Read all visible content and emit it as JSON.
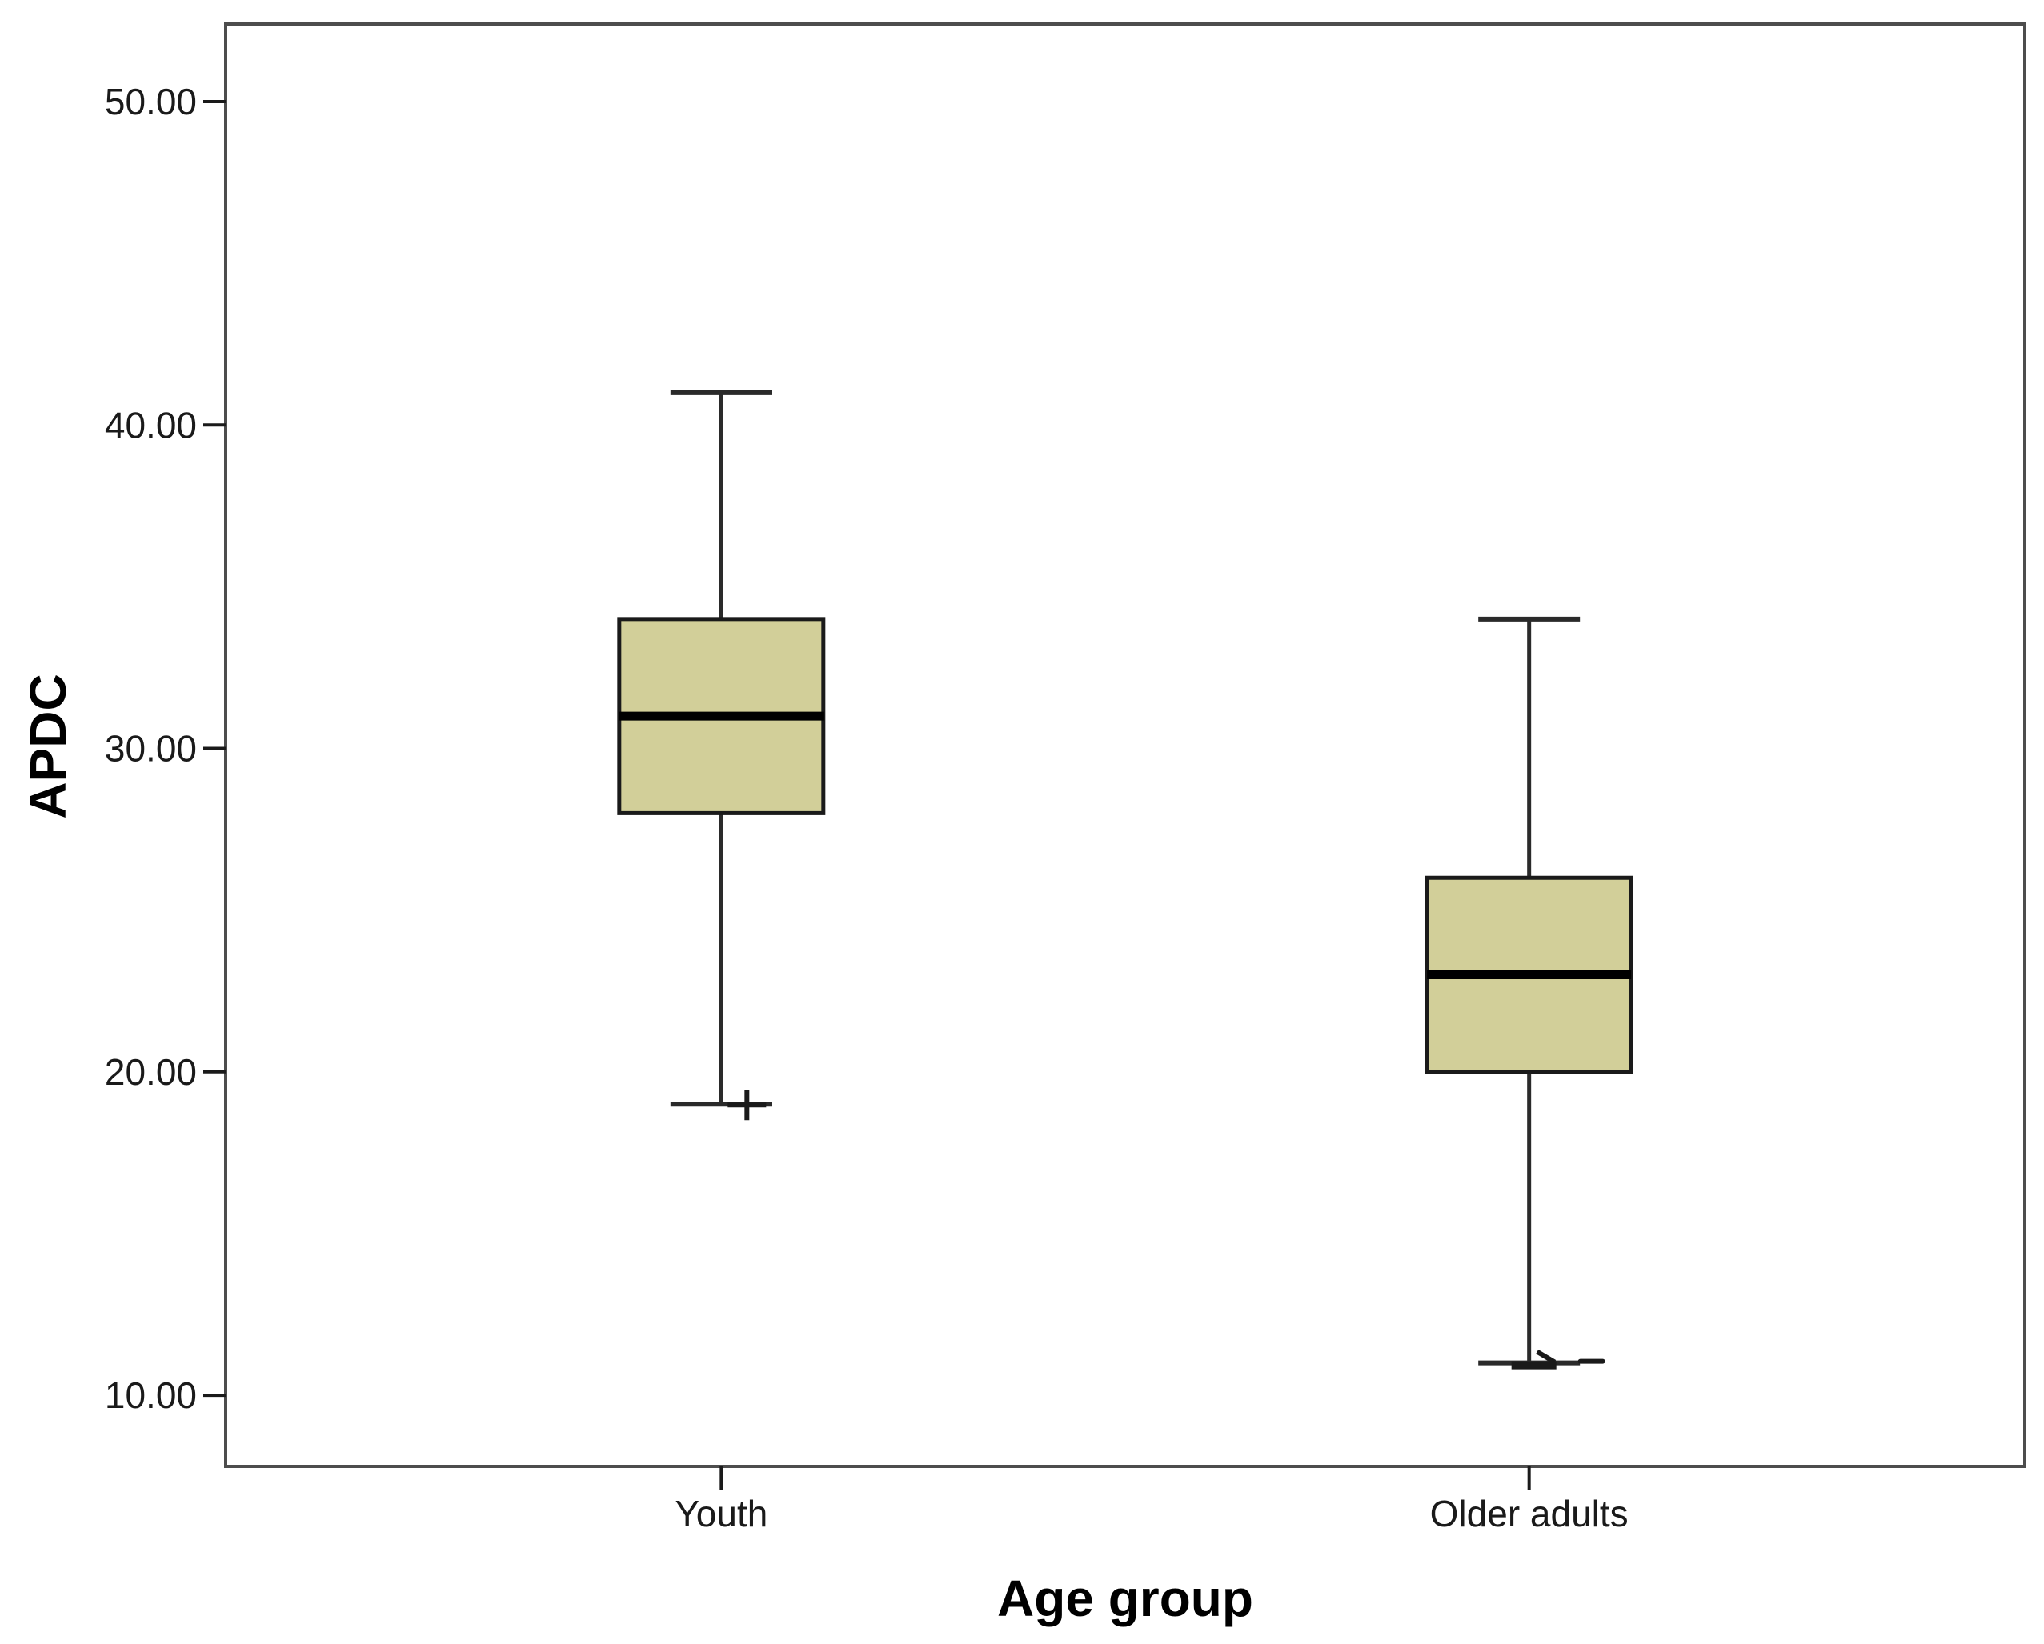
{
  "chart_data": {
    "type": "boxplot",
    "title": "",
    "xlabel": "Age group",
    "ylabel": "APDC",
    "ylim": [
      7.8,
      52.4
    ],
    "grid": false,
    "legend": null,
    "yticks": [
      {
        "value": 10,
        "label": "10.00"
      },
      {
        "value": 20,
        "label": "20.00"
      },
      {
        "value": 30,
        "label": "30.00"
      },
      {
        "value": 40,
        "label": "40.00"
      },
      {
        "value": 50,
        "label": "50.00"
      }
    ],
    "categories": [
      "Youth",
      "Older adults"
    ],
    "series": [
      {
        "category": "Youth",
        "whisker_low": 19,
        "q1": 28,
        "median": 31,
        "q3": 34,
        "whisker_high": 41,
        "outliers": [
          {
            "value": 19,
            "marker": "plus"
          }
        ]
      },
      {
        "category": "Older adults",
        "whisker_low": 11,
        "q1": 20,
        "median": 23,
        "q3": 26,
        "whisker_high": 34,
        "outliers": [
          {
            "value": 11,
            "marker": "scratch"
          }
        ]
      }
    ],
    "colors": {
      "background": "#ffffff",
      "box_fill": "#d2cf99",
      "box_border": "#1a1a1a",
      "median": "#000000",
      "whisker": "#2a2a2a",
      "frame": "#4d4d4d",
      "tick": "#1a1a1a",
      "text": "#1a1a1a"
    }
  }
}
